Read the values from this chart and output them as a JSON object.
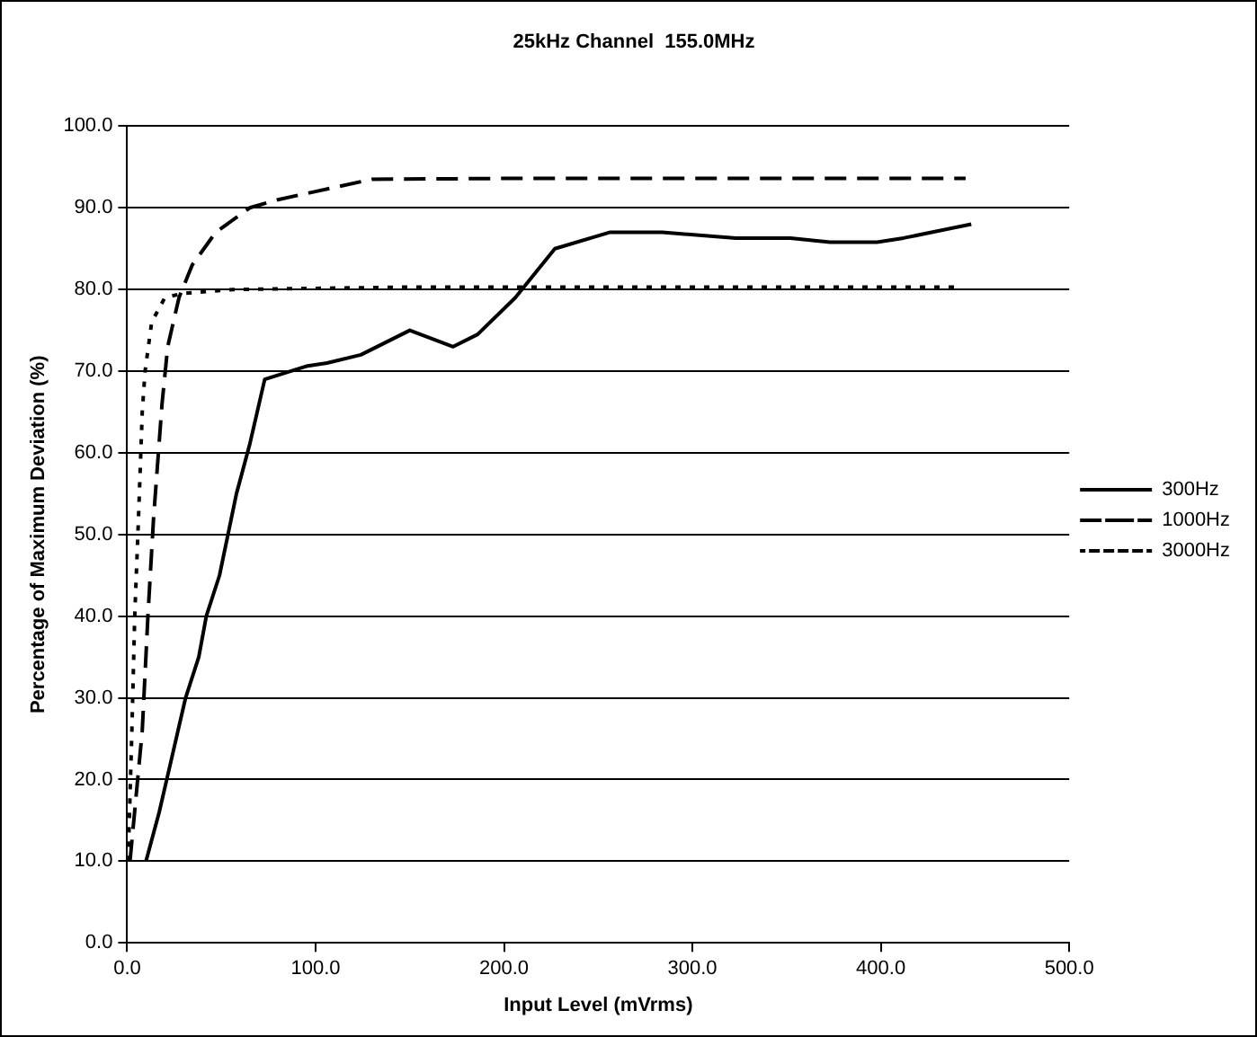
{
  "chart_data": {
    "type": "line",
    "title": "25kHz Channel  155.0MHz",
    "xlabel": "Input Level (mVrms)",
    "ylabel": "Percentage of Maximum Deviation (%)",
    "xlim": [
      0,
      500
    ],
    "ylim": [
      0,
      100
    ],
    "xticks": [
      {
        "value": 0,
        "label": "0.0"
      },
      {
        "value": 100,
        "label": "100.0"
      },
      {
        "value": 200,
        "label": "200.0"
      },
      {
        "value": 300,
        "label": "300.0"
      },
      {
        "value": 400,
        "label": "400.0"
      },
      {
        "value": 500,
        "label": "500.0"
      }
    ],
    "yticks": [
      {
        "value": 0,
        "label": "0.0"
      },
      {
        "value": 10,
        "label": "10.0"
      },
      {
        "value": 20,
        "label": "20.0"
      },
      {
        "value": 30,
        "label": "30.0"
      },
      {
        "value": 40,
        "label": "40.0"
      },
      {
        "value": 50,
        "label": "50.0"
      },
      {
        "value": 60,
        "label": "60.0"
      },
      {
        "value": 70,
        "label": "70.0"
      },
      {
        "value": 80,
        "label": "80.0"
      },
      {
        "value": 90,
        "label": "90.0"
      },
      {
        "value": 100,
        "label": "100.0"
      }
    ],
    "grid": "y",
    "legend": "right",
    "marker": "none",
    "series": [
      {
        "name": "300Hz",
        "color": "#000000",
        "line_style": "solid",
        "x": [
          10,
          17,
          22,
          31,
          38,
          42,
          49,
          58,
          65,
          73,
          95,
          106,
          124,
          150,
          173,
          186,
          206,
          227,
          256,
          284,
          323,
          352,
          373,
          398,
          412,
          448
        ],
        "values": [
          10,
          16,
          21,
          30,
          35,
          40,
          45,
          55,
          61,
          69,
          70.6,
          71,
          72,
          75,
          73,
          74.5,
          79,
          85,
          87,
          87,
          86.3,
          86.3,
          85.8,
          85.8,
          86.3,
          88
        ]
      },
      {
        "name": "1000Hz",
        "color": "#000000",
        "line_style": "dashed",
        "x": [
          1.5,
          8,
          11,
          14,
          18.5,
          21.5,
          27.5,
          34.5,
          47,
          65,
          80,
          100,
          130,
          200,
          300,
          445
        ],
        "values": [
          10,
          26,
          40,
          52,
          66,
          73,
          79,
          83,
          87,
          90,
          91,
          92,
          93.5,
          93.6,
          93.6,
          93.6
        ]
      },
      {
        "name": "3000Hz",
        "color": "#000000",
        "line_style": "dotted",
        "x": [
          0.5,
          2.5,
          4,
          6,
          8,
          9.5,
          13,
          20,
          29,
          56,
          150,
          300,
          440
        ],
        "values": [
          10,
          26,
          40,
          52,
          65,
          70,
          76,
          79,
          79.5,
          80,
          80.3,
          80.3,
          80.3
        ]
      }
    ]
  }
}
